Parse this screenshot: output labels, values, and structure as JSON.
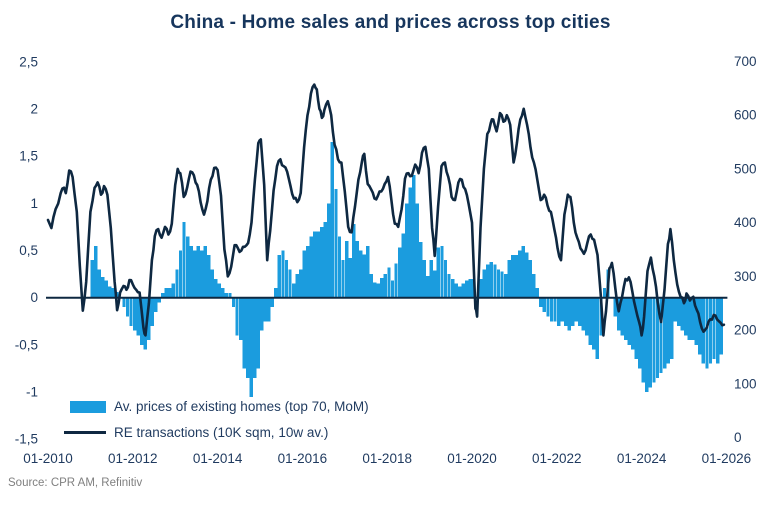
{
  "title": "China - Home sales and prices across top cities",
  "source": "Source: CPR AM, Refinitiv",
  "colors": {
    "bar": "#1b9cde",
    "line": "#0e2841",
    "text": "#1f3a5f",
    "title_text": "#17365d",
    "source_text": "#808080",
    "zero_line": "#0e2841",
    "background": "#ffffff"
  },
  "legend": {
    "bars_label": "Av. prices of existing homes (top 70, MoM)",
    "line_label": "RE transactions (10K sqm, 10w av.)"
  },
  "chart_data": {
    "type": "combo-bar-line",
    "title": "China - Home sales and prices across top cities",
    "grid": false,
    "legend_position": "inside-bottom-left",
    "left_axis": {
      "min": -1.5,
      "max": 2.5,
      "tick_labels": [
        "2,5",
        "2",
        "1,5",
        "1",
        "0,5",
        "0",
        "-0,5",
        "-1",
        "-1,5"
      ],
      "tick_values": [
        2.5,
        2,
        1.5,
        1,
        0.5,
        0,
        -0.5,
        -1,
        -1.5
      ]
    },
    "right_axis": {
      "min": 0,
      "max": 700,
      "tick_labels": [
        "700",
        "600",
        "500",
        "400",
        "300",
        "200",
        "100",
        "0"
      ],
      "tick_values": [
        700,
        600,
        500,
        400,
        300,
        200,
        100,
        0
      ]
    },
    "x_axis": {
      "min_year": 2010,
      "max_year": 2026,
      "tick_labels": [
        "01-2010",
        "01-2012",
        "01-2014",
        "01-2016",
        "01-2018",
        "01-2020",
        "01-2022",
        "01-2024",
        "01-2026"
      ],
      "tick_values": [
        2010,
        2012,
        2014,
        2016,
        2018,
        2020,
        2022,
        2024,
        2026
      ]
    },
    "series": [
      {
        "name": "Av. prices of existing homes (top 70, MoM)",
        "type": "bar",
        "axis": "left",
        "start": "2011-01",
        "frequency": "monthly",
        "values": [
          0.4,
          0.55,
          0.3,
          0.22,
          0.18,
          0.12,
          0.1,
          0.06,
          0.0,
          -0.1,
          -0.2,
          -0.3,
          -0.35,
          -0.4,
          -0.5,
          -0.55,
          -0.45,
          -0.3,
          -0.15,
          -0.05,
          0.05,
          0.1,
          0.1,
          0.15,
          0.3,
          0.5,
          0.8,
          0.65,
          0.55,
          0.5,
          0.55,
          0.5,
          0.55,
          0.45,
          0.3,
          0.2,
          0.15,
          0.1,
          0.05,
          0.05,
          -0.1,
          -0.4,
          -0.45,
          -0.75,
          -0.85,
          -1.05,
          -0.85,
          -0.75,
          -0.35,
          -0.25,
          -0.25,
          -0.1,
          0.1,
          0.45,
          0.5,
          0.4,
          0.3,
          0.15,
          0.25,
          0.3,
          0.5,
          0.55,
          0.65,
          0.7,
          0.7,
          0.75,
          0.8,
          1.0,
          1.65,
          1.15,
          0.65,
          0.4,
          0.6,
          0.42,
          0.78,
          0.6,
          0.5,
          0.46,
          0.55,
          0.25,
          0.16,
          0.15,
          0.21,
          0.25,
          0.32,
          0.18,
          0.36,
          0.53,
          0.68,
          1.0,
          1.17,
          1.3,
          1.0,
          0.59,
          0.4,
          0.23,
          0.4,
          0.29,
          0.53,
          0.55,
          0.4,
          0.25,
          0.2,
          0.15,
          0.12,
          0.15,
          0.18,
          0.2,
          0.2,
          0.0,
          0.2,
          0.3,
          0.35,
          0.38,
          0.35,
          0.3,
          0.28,
          0.25,
          0.4,
          0.45,
          0.45,
          0.5,
          0.55,
          0.48,
          0.4,
          0.25,
          0.1,
          -0.1,
          -0.15,
          -0.2,
          -0.25,
          -0.25,
          -0.3,
          -0.25,
          -0.3,
          -0.35,
          -0.3,
          -0.25,
          -0.3,
          -0.35,
          -0.4,
          -0.5,
          -0.55,
          -0.65,
          -0.4,
          0.1,
          0.3,
          0.0,
          -0.2,
          -0.35,
          -0.4,
          -0.45,
          -0.5,
          -0.55,
          -0.65,
          -0.75,
          -0.9,
          -1.0,
          -0.95,
          -0.9,
          -0.85,
          -0.8,
          -0.75,
          -0.7,
          -0.65,
          -0.25,
          -0.3,
          -0.35,
          -0.4,
          -0.45,
          -0.45,
          -0.5,
          -0.6,
          -0.7,
          -0.75,
          -0.7,
          -0.65,
          -0.7,
          -0.6
        ]
      },
      {
        "name": "RE transactions (10K sqm, 10w av.)",
        "type": "line",
        "axis": "right",
        "points": [
          [
            2010.0,
            405
          ],
          [
            2010.08,
            390
          ],
          [
            2010.18,
            425
          ],
          [
            2010.3,
            455
          ],
          [
            2010.38,
            465
          ],
          [
            2010.42,
            455
          ],
          [
            2010.5,
            497
          ],
          [
            2010.58,
            485
          ],
          [
            2010.68,
            420
          ],
          [
            2010.75,
            320
          ],
          [
            2010.82,
            236
          ],
          [
            2010.9,
            290
          ],
          [
            2011.0,
            420
          ],
          [
            2011.1,
            465
          ],
          [
            2011.17,
            475
          ],
          [
            2011.25,
            452
          ],
          [
            2011.32,
            468
          ],
          [
            2011.4,
            452
          ],
          [
            2011.48,
            390
          ],
          [
            2011.57,
            290
          ],
          [
            2011.63,
            237
          ],
          [
            2011.7,
            270
          ],
          [
            2011.78,
            282
          ],
          [
            2011.85,
            275
          ],
          [
            2011.92,
            293
          ],
          [
            2012.0,
            285
          ],
          [
            2012.08,
            275
          ],
          [
            2012.16,
            270
          ],
          [
            2012.25,
            205
          ],
          [
            2012.3,
            190
          ],
          [
            2012.38,
            250
          ],
          [
            2012.45,
            330
          ],
          [
            2012.52,
            375
          ],
          [
            2012.6,
            388
          ],
          [
            2012.68,
            372
          ],
          [
            2012.76,
            392
          ],
          [
            2012.84,
            378
          ],
          [
            2012.92,
            398
          ],
          [
            2013.0,
            470
          ],
          [
            2013.06,
            500
          ],
          [
            2013.12,
            492
          ],
          [
            2013.2,
            448
          ],
          [
            2013.28,
            465
          ],
          [
            2013.36,
            495
          ],
          [
            2013.44,
            488
          ],
          [
            2013.52,
            470
          ],
          [
            2013.6,
            438
          ],
          [
            2013.68,
            415
          ],
          [
            2013.76,
            440
          ],
          [
            2013.84,
            480
          ],
          [
            2013.92,
            502
          ],
          [
            2014.0,
            498
          ],
          [
            2014.08,
            450
          ],
          [
            2014.16,
            350
          ],
          [
            2014.24,
            300
          ],
          [
            2014.32,
            318
          ],
          [
            2014.4,
            358
          ],
          [
            2014.48,
            352
          ],
          [
            2014.56,
            348
          ],
          [
            2014.64,
            355
          ],
          [
            2014.72,
            362
          ],
          [
            2014.8,
            400
          ],
          [
            2014.88,
            480
          ],
          [
            2014.96,
            548
          ],
          [
            2015.02,
            555
          ],
          [
            2015.1,
            470
          ],
          [
            2015.17,
            330
          ],
          [
            2015.24,
            385
          ],
          [
            2015.32,
            460
          ],
          [
            2015.4,
            505
          ],
          [
            2015.48,
            518
          ],
          [
            2015.56,
            505
          ],
          [
            2015.64,
            495
          ],
          [
            2015.72,
            468
          ],
          [
            2015.8,
            445
          ],
          [
            2015.88,
            438
          ],
          [
            2015.96,
            455
          ],
          [
            2016.04,
            540
          ],
          [
            2016.12,
            600
          ],
          [
            2016.2,
            640
          ],
          [
            2016.28,
            657
          ],
          [
            2016.34,
            648
          ],
          [
            2016.4,
            612
          ],
          [
            2016.46,
            595
          ],
          [
            2016.52,
            610
          ],
          [
            2016.6,
            626
          ],
          [
            2016.68,
            600
          ],
          [
            2016.76,
            545
          ],
          [
            2016.84,
            518
          ],
          [
            2016.92,
            512
          ],
          [
            2017.0,
            458
          ],
          [
            2017.08,
            392
          ],
          [
            2017.16,
            382
          ],
          [
            2017.24,
            430
          ],
          [
            2017.32,
            480
          ],
          [
            2017.4,
            512
          ],
          [
            2017.46,
            528
          ],
          [
            2017.54,
            472
          ],
          [
            2017.62,
            462
          ],
          [
            2017.7,
            445
          ],
          [
            2017.78,
            450
          ],
          [
            2017.86,
            458
          ],
          [
            2017.94,
            472
          ],
          [
            2018.02,
            485
          ],
          [
            2018.1,
            442
          ],
          [
            2018.18,
            398
          ],
          [
            2018.26,
            392
          ],
          [
            2018.34,
            425
          ],
          [
            2018.42,
            482
          ],
          [
            2018.5,
            492
          ],
          [
            2018.58,
            487
          ],
          [
            2018.66,
            508
          ],
          [
            2018.74,
            492
          ],
          [
            2018.82,
            530
          ],
          [
            2018.9,
            541
          ],
          [
            2018.98,
            500
          ],
          [
            2019.06,
            390
          ],
          [
            2019.12,
            338
          ],
          [
            2019.2,
            430
          ],
          [
            2019.28,
            505
          ],
          [
            2019.36,
            512
          ],
          [
            2019.44,
            485
          ],
          [
            2019.52,
            448
          ],
          [
            2019.6,
            442
          ],
          [
            2019.68,
            475
          ],
          [
            2019.76,
            480
          ],
          [
            2019.84,
            462
          ],
          [
            2019.92,
            435
          ],
          [
            2020.0,
            400
          ],
          [
            2020.08,
            240
          ],
          [
            2020.12,
            225
          ],
          [
            2020.2,
            390
          ],
          [
            2020.28,
            500
          ],
          [
            2020.36,
            565
          ],
          [
            2020.44,
            585
          ],
          [
            2020.5,
            592
          ],
          [
            2020.58,
            570
          ],
          [
            2020.66,
            604
          ],
          [
            2020.74,
            588
          ],
          [
            2020.82,
            600
          ],
          [
            2020.9,
            582
          ],
          [
            2020.98,
            512
          ],
          [
            2021.06,
            548
          ],
          [
            2021.14,
            592
          ],
          [
            2021.22,
            612
          ],
          [
            2021.3,
            582
          ],
          [
            2021.38,
            540
          ],
          [
            2021.46,
            512
          ],
          [
            2021.54,
            480
          ],
          [
            2021.62,
            442
          ],
          [
            2021.7,
            452
          ],
          [
            2021.78,
            432
          ],
          [
            2021.86,
            420
          ],
          [
            2021.94,
            388
          ],
          [
            2022.02,
            352
          ],
          [
            2022.1,
            330
          ],
          [
            2022.18,
            415
          ],
          [
            2022.26,
            452
          ],
          [
            2022.32,
            448
          ],
          [
            2022.4,
            400
          ],
          [
            2022.48,
            372
          ],
          [
            2022.56,
            352
          ],
          [
            2022.64,
            342
          ],
          [
            2022.72,
            362
          ],
          [
            2022.8,
            378
          ],
          [
            2022.88,
            368
          ],
          [
            2022.96,
            340
          ],
          [
            2023.04,
            262
          ],
          [
            2023.1,
            190
          ],
          [
            2023.16,
            235
          ],
          [
            2023.24,
            315
          ],
          [
            2023.3,
            325
          ],
          [
            2023.38,
            278
          ],
          [
            2023.46,
            235
          ],
          [
            2023.54,
            262
          ],
          [
            2023.62,
            295
          ],
          [
            2023.7,
            298
          ],
          [
            2023.78,
            272
          ],
          [
            2023.86,
            240
          ],
          [
            2023.94,
            215
          ],
          [
            2024.0,
            190
          ],
          [
            2024.06,
            225
          ],
          [
            2024.14,
            310
          ],
          [
            2024.22,
            335
          ],
          [
            2024.3,
            300
          ],
          [
            2024.38,
            252
          ],
          [
            2024.46,
            215
          ],
          [
            2024.54,
            275
          ],
          [
            2024.62,
            360
          ],
          [
            2024.68,
            388
          ],
          [
            2024.76,
            330
          ],
          [
            2024.84,
            285
          ],
          [
            2024.92,
            262
          ],
          [
            2025.0,
            250
          ],
          [
            2025.06,
            268
          ],
          [
            2025.14,
            255
          ],
          [
            2025.22,
            262
          ],
          [
            2025.3,
            238
          ],
          [
            2025.38,
            215
          ],
          [
            2025.46,
            197
          ],
          [
            2025.54,
            205
          ],
          [
            2025.62,
            220
          ],
          [
            2025.7,
            228
          ],
          [
            2025.78,
            220
          ],
          [
            2025.86,
            214
          ],
          [
            2025.94,
            210
          ]
        ]
      }
    ]
  }
}
